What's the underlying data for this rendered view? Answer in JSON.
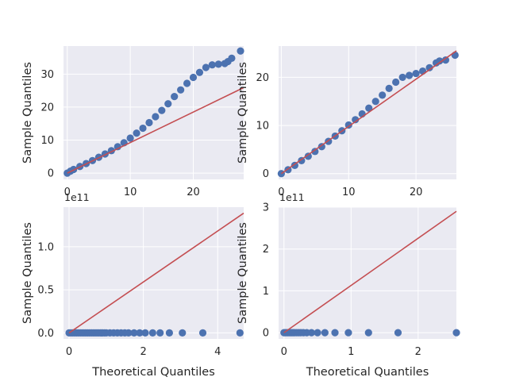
{
  "chart_data": [
    {
      "type": "scatter",
      "title": "",
      "xlabel": "",
      "ylabel": "Sample Quantiles",
      "xlim": [
        -0.6,
        28
      ],
      "ylim": [
        -1.9,
        38.5
      ],
      "xticks": [
        0,
        10,
        20
      ],
      "yticks": [
        0,
        10,
        20,
        30
      ],
      "xtick_labels": [
        "0",
        "10",
        "20"
      ],
      "ytick_labels": [
        "0",
        "10",
        "20",
        "30"
      ],
      "grid": true,
      "marker_color": "#4c72b0",
      "line_color": "#c44e52",
      "reference_line": [
        [
          0,
          0
        ],
        [
          28,
          25.9
        ]
      ],
      "points": [
        [
          0,
          0
        ],
        [
          0.5,
          0.6
        ],
        [
          1,
          1.1
        ],
        [
          2,
          2
        ],
        [
          3,
          2.9
        ],
        [
          4,
          3.8
        ],
        [
          5,
          4.8
        ],
        [
          6,
          5.8
        ],
        [
          7,
          6.8
        ],
        [
          8,
          8
        ],
        [
          9,
          9.2
        ],
        [
          10,
          10.6
        ],
        [
          11,
          12.1
        ],
        [
          12,
          13.6
        ],
        [
          13,
          15.3
        ],
        [
          14,
          17.1
        ],
        [
          15,
          19
        ],
        [
          16,
          21
        ],
        [
          17,
          23.2
        ],
        [
          18,
          25.2
        ],
        [
          19,
          27.2
        ],
        [
          20,
          29
        ],
        [
          21,
          30.5
        ],
        [
          22,
          32
        ],
        [
          23,
          32.8
        ],
        [
          24,
          33
        ],
        [
          25,
          33.2
        ],
        [
          25.5,
          33.8
        ],
        [
          26.1,
          34.8
        ],
        [
          27.5,
          37
        ]
      ]
    },
    {
      "type": "scatter",
      "title": "",
      "xlabel": "",
      "ylabel": "Sample Quantiles",
      "xlim": [
        -0.4,
        26
      ],
      "ylim": [
        -1.2,
        26.5
      ],
      "xticks": [
        0,
        10,
        20
      ],
      "yticks": [
        0,
        10,
        20
      ],
      "xtick_labels": [
        "0",
        "10",
        "20"
      ],
      "ytick_labels": [
        "0",
        "10",
        "20"
      ],
      "grid": true,
      "marker_color": "#4c72b0",
      "line_color": "#c44e52",
      "reference_line": [
        [
          0,
          0
        ],
        [
          26,
          25.5
        ]
      ],
      "points": [
        [
          0,
          0
        ],
        [
          1,
          0.8
        ],
        [
          2,
          1.7
        ],
        [
          3,
          2.7
        ],
        [
          4,
          3.6
        ],
        [
          5,
          4.6
        ],
        [
          6,
          5.6
        ],
        [
          7,
          6.7
        ],
        [
          8,
          7.8
        ],
        [
          9,
          8.9
        ],
        [
          10,
          10.1
        ],
        [
          11,
          11.2
        ],
        [
          12,
          12.4
        ],
        [
          13,
          13.6
        ],
        [
          14,
          15
        ],
        [
          15,
          16.3
        ],
        [
          16,
          17.7
        ],
        [
          17,
          19
        ],
        [
          18,
          20
        ],
        [
          19,
          20.4
        ],
        [
          20,
          20.8
        ],
        [
          21,
          21.3
        ],
        [
          22,
          22
        ],
        [
          23,
          23
        ],
        [
          23.5,
          23.4
        ],
        [
          24.4,
          23.6
        ],
        [
          25.8,
          24.6
        ]
      ]
    },
    {
      "type": "scatter",
      "title": "",
      "xlabel": "Theoretical Quantiles",
      "ylabel": "Sample Quantiles",
      "x_offset_label": "1e11",
      "xlim": [
        -0.15,
        4.7
      ],
      "ylim": [
        -0.07,
        1.46
      ],
      "xticks": [
        0,
        2,
        4
      ],
      "yticks": [
        0,
        0.5,
        1
      ],
      "xtick_labels": [
        "0",
        "2",
        "4"
      ],
      "ytick_labels": [
        "0.0",
        "0.5",
        "1.0"
      ],
      "grid": true,
      "marker_color": "#4c72b0",
      "line_color": "#c44e52",
      "reference_line": [
        [
          0,
          0
        ],
        [
          4.7,
          1.39
        ]
      ],
      "points": [
        [
          0,
          0
        ],
        [
          0.05,
          0
        ],
        [
          0.1,
          0
        ],
        [
          0.15,
          0
        ],
        [
          0.2,
          0
        ],
        [
          0.25,
          0
        ],
        [
          0.3,
          0
        ],
        [
          0.35,
          0
        ],
        [
          0.4,
          0
        ],
        [
          0.45,
          0
        ],
        [
          0.5,
          0
        ],
        [
          0.55,
          0
        ],
        [
          0.6,
          0
        ],
        [
          0.65,
          0
        ],
        [
          0.7,
          0
        ],
        [
          0.75,
          0
        ],
        [
          0.8,
          0
        ],
        [
          0.85,
          0
        ],
        [
          0.9,
          0
        ],
        [
          0.95,
          0
        ],
        [
          1,
          0
        ],
        [
          1.1,
          0
        ],
        [
          1.2,
          0
        ],
        [
          1.3,
          0
        ],
        [
          1.4,
          0
        ],
        [
          1.5,
          0
        ],
        [
          1.6,
          0
        ],
        [
          1.75,
          0
        ],
        [
          1.9,
          0
        ],
        [
          2.05,
          0
        ],
        [
          2.25,
          0
        ],
        [
          2.45,
          0
        ],
        [
          2.7,
          0
        ],
        [
          3.05,
          0
        ],
        [
          3.6,
          0
        ],
        [
          4.6,
          0
        ]
      ]
    },
    {
      "type": "scatter",
      "title": "",
      "xlabel": "Theoretical Quantiles",
      "ylabel": "Sample Quantiles",
      "x_offset_label": "1e11",
      "xlim": [
        -0.08,
        2.57
      ],
      "ylim": [
        -0.15,
        3.0
      ],
      "xticks": [
        0,
        1,
        2
      ],
      "yticks": [
        0,
        1,
        2,
        3
      ],
      "xtick_labels": [
        "0",
        "1",
        "2"
      ],
      "ytick_labels": [
        "0",
        "1",
        "2",
        "3"
      ],
      "grid": true,
      "marker_color": "#4c72b0",
      "line_color": "#c44e52",
      "reference_line": [
        [
          0,
          0
        ],
        [
          2.57,
          2.9
        ]
      ],
      "points": [
        [
          0,
          0
        ],
        [
          0.02,
          0
        ],
        [
          0.04,
          0
        ],
        [
          0.06,
          0
        ],
        [
          0.08,
          0
        ],
        [
          0.1,
          0
        ],
        [
          0.12,
          0
        ],
        [
          0.14,
          0
        ],
        [
          0.16,
          0
        ],
        [
          0.19,
          0
        ],
        [
          0.22,
          0
        ],
        [
          0.25,
          0
        ],
        [
          0.29,
          0
        ],
        [
          0.34,
          0
        ],
        [
          0.41,
          0
        ],
        [
          0.5,
          0
        ],
        [
          0.61,
          0
        ],
        [
          0.76,
          0
        ],
        [
          0.96,
          0
        ],
        [
          1.26,
          0
        ],
        [
          1.7,
          0
        ],
        [
          2.57,
          0
        ]
      ]
    }
  ]
}
